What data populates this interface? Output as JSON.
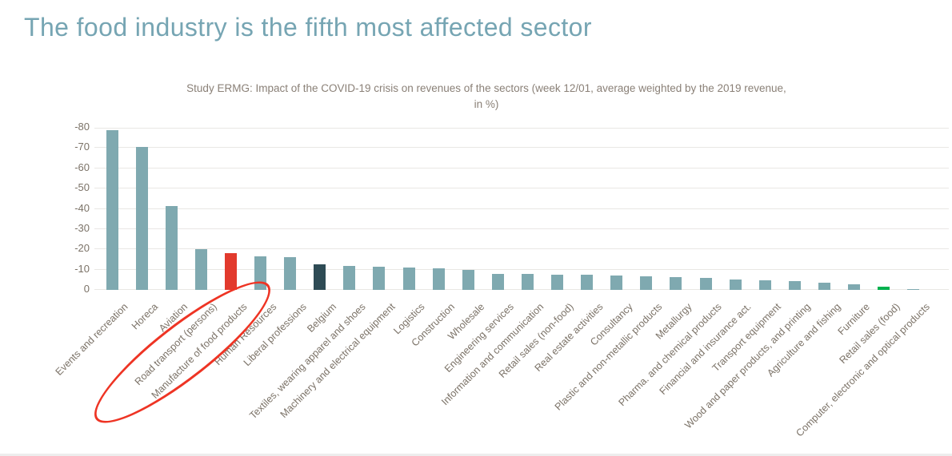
{
  "page_title": "The food industry is the fifth most affected sector",
  "colors": {
    "page_title": "#76a5b3",
    "axis_text": "#7b7267",
    "grid": "#e9e7e4",
    "bar_default": "#7fa9b0",
    "bar_manufacture_of_food_products": "#e23a2d",
    "bar_belgium": "#2e4b55",
    "bar_retail_sales_food": "#00b14e",
    "annotation_red": "#ee3424"
  },
  "chart_data": {
    "type": "bar",
    "title": "Study ERMG: Impact of the COVID-19 crisis on revenues of the sectors (week 12/01, average weighted by the 2019 revenue, in %)",
    "title_lines": [
      "Study ERMG: Impact of the COVID-19 crisis on revenues of the sectors (week 12/01, average weighted by the 2019 revenue,",
      "in %)"
    ],
    "unit": "%",
    "categories": [
      "Events and recreation",
      "Horeca",
      "Aviation",
      "Road transport (persons)",
      "Manufacture of food products",
      "Human Resources",
      "Liberal professions",
      "Belgium",
      "Textiles, wearing apparel and shoes",
      "Machinery and electrical equipment",
      "Logistics",
      "Construction",
      "Wholesale",
      "Engineering services",
      "Information and communication",
      "Retail sales (non-food)",
      "Real estate activities",
      "Consultancy",
      "Plastic and non-metallic products",
      "Metallurgy",
      "Pharma. and chemical products",
      "Financial and insurance act.",
      "Transport equipment",
      "Wood and paper products, and printing",
      "Agriculture and fishing",
      "Furniture",
      "Retail sales (food)",
      "Computer, electronic and optical products"
    ],
    "values": [
      -79,
      -70.5,
      -41.5,
      -20,
      -18,
      -16.5,
      -16,
      -12.5,
      -12,
      -11.5,
      -11,
      -10.5,
      -10,
      -8,
      -7.7,
      -7.3,
      -7.3,
      -7,
      -6.6,
      -6.2,
      -6,
      -5.2,
      -4.6,
      -4.2,
      -3.6,
      -2.9,
      -1.5,
      -0.5
    ],
    "bar_color_default": "#7fa9b0",
    "bar_color_overrides": {
      "4": "#e23a2d",
      "7": "#2e4b55",
      "26": "#00b14e"
    },
    "yticks": [
      -80,
      -70,
      -60,
      -50,
      -40,
      -30,
      -20,
      -10,
      0
    ],
    "ylim": [
      0,
      -80
    ],
    "grid": true,
    "legend": "none",
    "xlabel_rotation_deg": -45,
    "annotation": {
      "shape": "ellipse",
      "circled_label": "Manufacture of food products",
      "color": "#ee3424"
    }
  }
}
